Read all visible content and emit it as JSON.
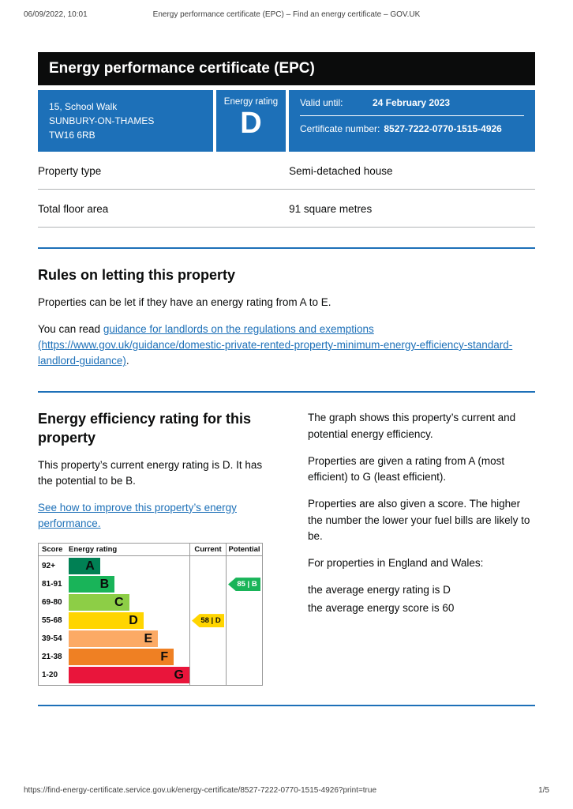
{
  "print_header": {
    "datetime": "06/09/2022, 10:01",
    "title": "Energy performance certificate (EPC) – Find an energy certificate – GOV.UK"
  },
  "banner": {
    "title": "Energy performance certificate (EPC)"
  },
  "summary": {
    "address_lines": [
      "15, School Walk",
      "SUNBURY-ON-THAMES",
      "TW16 6RB"
    ],
    "energy_rating_label": "Energy rating",
    "energy_rating": "D",
    "valid_until_label": "Valid until:",
    "valid_until_value": "24 February 2023",
    "certificate_number_label": "Certificate number:",
    "certificate_number_value": "8527-7222-0770-1515-4926"
  },
  "property": {
    "rows": [
      {
        "label": "Property type",
        "value": "Semi-detached house"
      },
      {
        "label": "Total floor area",
        "value": "91 square metres"
      }
    ]
  },
  "letting": {
    "heading": "Rules on letting this property",
    "para1": "Properties can be let if they have an energy rating from A to E.",
    "para2_prefix": "You can read ",
    "para2_link": "guidance for landlords on the regulations and exemptions (https://www.gov.uk/guidance/domestic-private-rented-property-minimum-energy-efficiency-standard-landlord-guidance)",
    "para2_suffix": "."
  },
  "efficiency": {
    "heading": "Energy efficiency rating for this property",
    "para1": "This property’s current energy rating is D. It has the potential to be B.",
    "improve_link": "See how to improve this property’s energy performance."
  },
  "explanation": {
    "para1": "The graph shows this property’s current and potential energy efficiency.",
    "para2": "Properties are given a rating from A (most efficient) to G (least efficient).",
    "para3": "Properties are also given a score. The higher the number the lower your fuel bills are likely to be.",
    "para4": "For properties in England and Wales:",
    "avg1": "the average energy rating is D",
    "avg2": "the average energy score is 60"
  },
  "chart_data": {
    "type": "bar",
    "title": "Energy efficiency rating",
    "headers": {
      "score": "Score",
      "rating": "Energy rating",
      "current": "Current",
      "potential": "Potential"
    },
    "bands": [
      {
        "score": "92+",
        "letter": "A",
        "color": "#008054",
        "width_pct": 26
      },
      {
        "score": "81-91",
        "letter": "B",
        "color": "#19b459",
        "width_pct": 38
      },
      {
        "score": "69-80",
        "letter": "C",
        "color": "#8dce46",
        "width_pct": 50
      },
      {
        "score": "55-68",
        "letter": "D",
        "color": "#ffd500",
        "width_pct": 62
      },
      {
        "score": "39-54",
        "letter": "E",
        "color": "#fcaa65",
        "width_pct": 74
      },
      {
        "score": "21-38",
        "letter": "F",
        "color": "#ef8023",
        "width_pct": 87
      },
      {
        "score": "1-20",
        "letter": "G",
        "color": "#e9153b",
        "width_pct": 100
      }
    ],
    "current": {
      "score": "58",
      "letter": "D",
      "band_index": 3,
      "color": "#ffd500",
      "text_color": "#0b0c0c"
    },
    "potential": {
      "score": "85",
      "letter": "B",
      "band_index": 1,
      "color": "#19b459",
      "text_color": "#ffffff"
    }
  },
  "footer": {
    "url": "https://find-energy-certificate.service.gov.uk/energy-certificate/8527-7222-0770-1515-4926?print=true",
    "page": "1/5"
  },
  "colors": {
    "govuk_blue": "#1d70b8",
    "banner_black": "#0b0c0c",
    "link_blue": "#1d70b8",
    "rule_gray": "#b1b4b6"
  }
}
